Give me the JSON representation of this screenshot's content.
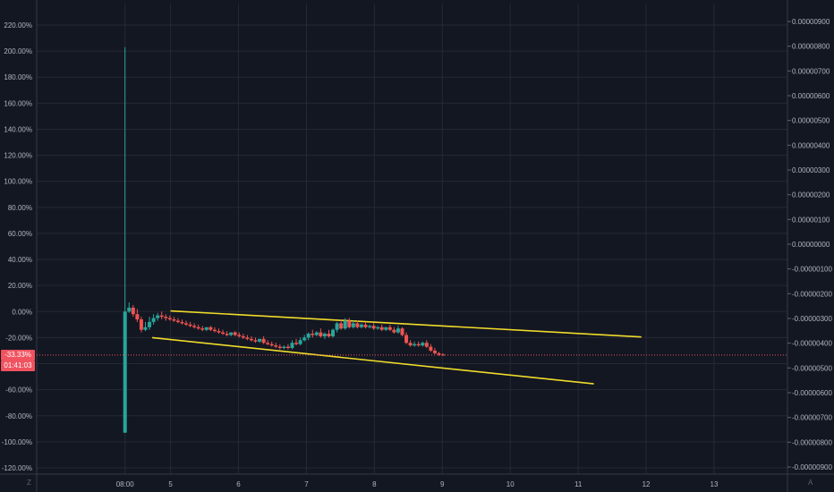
{
  "chart_data": {
    "type": "candlestick",
    "left_axis": {
      "ticks": [
        "220.00%",
        "200.00%",
        "180.00%",
        "160.00%",
        "140.00%",
        "120.00%",
        "100.00%",
        "80.00%",
        "60.00%",
        "40.00%",
        "20.00%",
        "0.00%",
        "-20.00%",
        "-40.00%",
        "-60.00%",
        "-80.00%",
        "-100.00%",
        "-120.00%"
      ],
      "range": [
        -122,
        226
      ]
    },
    "right_axis": {
      "ticks": [
        "0.00000900",
        "0.00000800",
        "0.00000700",
        "0.00000600",
        "0.00000500",
        "0.00000400",
        "0.00000300",
        "0.00000200",
        "0.00000100",
        "0.00000000",
        "-0.00000100",
        "-0.00000200",
        "-0.00000300",
        "-0.00000400",
        "-0.00000500",
        "-0.00000600",
        "-0.00000700",
        "-0.00000800",
        "-0.00000900"
      ]
    },
    "x_axis": {
      "ticks": [
        "08:00",
        "5",
        "6",
        "7",
        "8",
        "9",
        "10",
        "11",
        "12",
        "13"
      ],
      "tick_days": [
        4.0,
        4.67,
        5.67,
        6.67,
        7.67,
        8.67,
        9.67,
        10.67,
        11.67,
        12.67
      ],
      "range": [
        2.7,
        13.75
      ]
    },
    "current_value": {
      "label": "-33.33%",
      "value": -33.33,
      "countdown": "01:41:03"
    },
    "candles": [
      {
        "t": 4.0,
        "o": -93,
        "h": 203,
        "c": 0,
        "l": -93,
        "up": true
      },
      {
        "t": 4.06,
        "o": 0,
        "h": 7,
        "c": 3,
        "l": -1,
        "up": true
      },
      {
        "t": 4.12,
        "o": 3,
        "h": 5,
        "c": -2,
        "l": -4,
        "up": false
      },
      {
        "t": 4.18,
        "o": -2,
        "h": 2,
        "c": -6,
        "l": -8,
        "up": false
      },
      {
        "t": 4.24,
        "o": -6,
        "h": -4,
        "c": -14,
        "l": -16,
        "up": false
      },
      {
        "t": 4.3,
        "o": -14,
        "h": -8,
        "c": -12,
        "l": -15,
        "up": true
      },
      {
        "t": 4.36,
        "o": -12,
        "h": -4,
        "c": -8,
        "l": -14,
        "up": true
      },
      {
        "t": 4.42,
        "o": -8,
        "h": -2,
        "c": -5,
        "l": -10,
        "up": true
      },
      {
        "t": 4.48,
        "o": -5,
        "h": -1,
        "c": -3,
        "l": -7,
        "up": true
      },
      {
        "t": 4.54,
        "o": -3,
        "h": 0,
        "c": -4,
        "l": -6,
        "up": false
      },
      {
        "t": 4.6,
        "o": -4,
        "h": -2,
        "c": -5,
        "l": -7,
        "up": false
      },
      {
        "t": 4.66,
        "o": -5,
        "h": -3,
        "c": -6,
        "l": -7,
        "up": false
      },
      {
        "t": 4.72,
        "o": -6,
        "h": -4,
        "c": -7,
        "l": -8,
        "up": false
      },
      {
        "t": 4.78,
        "o": -7,
        "h": -5,
        "c": -8,
        "l": -9,
        "up": false
      },
      {
        "t": 4.84,
        "o": -8,
        "h": -6,
        "c": -9,
        "l": -10,
        "up": false
      },
      {
        "t": 4.9,
        "o": -9,
        "h": -7,
        "c": -10,
        "l": -11,
        "up": false
      },
      {
        "t": 4.96,
        "o": -10,
        "h": -8,
        "c": -11,
        "l": -12,
        "up": false
      },
      {
        "t": 5.02,
        "o": -11,
        "h": -9,
        "c": -12,
        "l": -13,
        "up": false
      },
      {
        "t": 5.08,
        "o": -12,
        "h": -10,
        "c": -13,
        "l": -14,
        "up": false
      },
      {
        "t": 5.14,
        "o": -13,
        "h": -11,
        "c": -14,
        "l": -15,
        "up": false
      },
      {
        "t": 5.2,
        "o": -14,
        "h": -12,
        "c": -12,
        "l": -15,
        "up": true
      },
      {
        "t": 5.26,
        "o": -12,
        "h": -11,
        "c": -14,
        "l": -15,
        "up": false
      },
      {
        "t": 5.32,
        "o": -14,
        "h": -12,
        "c": -15,
        "l": -16,
        "up": false
      },
      {
        "t": 5.38,
        "o": -15,
        "h": -13,
        "c": -16,
        "l": -17,
        "up": false
      },
      {
        "t": 5.44,
        "o": -16,
        "h": -14,
        "c": -17,
        "l": -18,
        "up": false
      },
      {
        "t": 5.5,
        "o": -17,
        "h": -15,
        "c": -18,
        "l": -19,
        "up": false
      },
      {
        "t": 5.56,
        "o": -18,
        "h": -16,
        "c": -16,
        "l": -19,
        "up": true
      },
      {
        "t": 5.62,
        "o": -16,
        "h": -15,
        "c": -18,
        "l": -19,
        "up": false
      },
      {
        "t": 5.68,
        "o": -18,
        "h": -16,
        "c": -19,
        "l": -20,
        "up": false
      },
      {
        "t": 5.74,
        "o": -19,
        "h": -17,
        "c": -20,
        "l": -21,
        "up": false
      },
      {
        "t": 5.8,
        "o": -20,
        "h": -18,
        "c": -21,
        "l": -22,
        "up": false
      },
      {
        "t": 5.86,
        "o": -21,
        "h": -19,
        "c": -22,
        "l": -23,
        "up": false
      },
      {
        "t": 5.92,
        "o": -22,
        "h": -20,
        "c": -23,
        "l": -24,
        "up": false
      },
      {
        "t": 5.98,
        "o": -23,
        "h": -21,
        "c": -21,
        "l": -24,
        "up": true
      },
      {
        "t": 6.04,
        "o": -21,
        "h": -19,
        "c": -24,
        "l": -25,
        "up": false
      },
      {
        "t": 6.1,
        "o": -24,
        "h": -22,
        "c": -25,
        "l": -26,
        "up": false
      },
      {
        "t": 6.16,
        "o": -25,
        "h": -23,
        "c": -26,
        "l": -27,
        "up": false
      },
      {
        "t": 6.22,
        "o": -26,
        "h": -24,
        "c": -27,
        "l": -28,
        "up": false
      },
      {
        "t": 6.28,
        "o": -27,
        "h": -25,
        "c": -28,
        "l": -29,
        "up": false
      },
      {
        "t": 6.34,
        "o": -28,
        "h": -26,
        "c": -27,
        "l": -29,
        "up": true
      },
      {
        "t": 6.4,
        "o": -27,
        "h": -25,
        "c": -28,
        "l": -29,
        "up": false
      },
      {
        "t": 6.46,
        "o": -28,
        "h": -22,
        "c": -24,
        "l": -29,
        "up": true
      },
      {
        "t": 6.52,
        "o": -24,
        "h": -21,
        "c": -25,
        "l": -26,
        "up": false
      },
      {
        "t": 6.58,
        "o": -25,
        "h": -20,
        "c": -22,
        "l": -26,
        "up": true
      },
      {
        "t": 6.64,
        "o": -22,
        "h": -18,
        "c": -20,
        "l": -23,
        "up": true
      },
      {
        "t": 6.7,
        "o": -20,
        "h": -16,
        "c": -17,
        "l": -22,
        "up": true
      },
      {
        "t": 6.76,
        "o": -17,
        "h": -14,
        "c": -18,
        "l": -20,
        "up": false
      },
      {
        "t": 6.82,
        "o": -18,
        "h": -15,
        "c": -16,
        "l": -19,
        "up": true
      },
      {
        "t": 6.88,
        "o": -16,
        "h": -13,
        "c": -19,
        "l": -20,
        "up": false
      },
      {
        "t": 6.94,
        "o": -19,
        "h": -16,
        "c": -17,
        "l": -21,
        "up": true
      },
      {
        "t": 7.0,
        "o": -17,
        "h": -14,
        "c": -19,
        "l": -20,
        "up": false
      },
      {
        "t": 7.06,
        "o": -19,
        "h": -13,
        "c": -14,
        "l": -20,
        "up": true
      },
      {
        "t": 7.12,
        "o": -14,
        "h": -8,
        "c": -9,
        "l": -16,
        "up": true
      },
      {
        "t": 7.18,
        "o": -9,
        "h": -6,
        "c": -13,
        "l": -14,
        "up": false
      },
      {
        "t": 7.24,
        "o": -13,
        "h": -5,
        "c": -7,
        "l": -14,
        "up": true
      },
      {
        "t": 7.3,
        "o": -7,
        "h": -5,
        "c": -12,
        "l": -13,
        "up": false
      },
      {
        "t": 7.36,
        "o": -12,
        "h": -7,
        "c": -9,
        "l": -13,
        "up": true
      },
      {
        "t": 7.42,
        "o": -9,
        "h": -7,
        "c": -12,
        "l": -13,
        "up": false
      },
      {
        "t": 7.48,
        "o": -12,
        "h": -9,
        "c": -10,
        "l": -13,
        "up": true
      },
      {
        "t": 7.54,
        "o": -10,
        "h": -8,
        "c": -12,
        "l": -13,
        "up": false
      },
      {
        "t": 7.6,
        "o": -12,
        "h": -10,
        "c": -11,
        "l": -13,
        "up": true
      },
      {
        "t": 7.66,
        "o": -11,
        "h": -9,
        "c": -13,
        "l": -14,
        "up": false
      },
      {
        "t": 7.72,
        "o": -13,
        "h": -11,
        "c": -12,
        "l": -14,
        "up": true
      },
      {
        "t": 7.78,
        "o": -12,
        "h": -10,
        "c": -14,
        "l": -15,
        "up": false
      },
      {
        "t": 7.84,
        "o": -14,
        "h": -12,
        "c": -12,
        "l": -15,
        "up": true
      },
      {
        "t": 7.9,
        "o": -12,
        "h": -10,
        "c": -14,
        "l": -15,
        "up": false
      },
      {
        "t": 7.96,
        "o": -14,
        "h": -12,
        "c": -16,
        "l": -17,
        "up": false
      },
      {
        "t": 8.02,
        "o": -16,
        "h": -11,
        "c": -13,
        "l": -17,
        "up": true
      },
      {
        "t": 8.08,
        "o": -13,
        "h": -12,
        "c": -18,
        "l": -19,
        "up": false
      },
      {
        "t": 8.14,
        "o": -18,
        "h": -16,
        "c": -24,
        "l": -25,
        "up": false
      },
      {
        "t": 8.2,
        "o": -24,
        "h": -22,
        "c": -26,
        "l": -27,
        "up": false
      },
      {
        "t": 8.26,
        "o": -26,
        "h": -23,
        "c": -25,
        "l": -27,
        "up": true
      },
      {
        "t": 8.32,
        "o": -25,
        "h": -23,
        "c": -26,
        "l": -27,
        "up": false
      },
      {
        "t": 8.38,
        "o": -26,
        "h": -23,
        "c": -24,
        "l": -27,
        "up": true
      },
      {
        "t": 8.44,
        "o": -24,
        "h": -22,
        "c": -27,
        "l": -28,
        "up": false
      },
      {
        "t": 8.5,
        "o": -27,
        "h": -25,
        "c": -30,
        "l": -31,
        "up": false
      },
      {
        "t": 8.56,
        "o": -30,
        "h": -28,
        "c": -32,
        "l": -33,
        "up": false
      },
      {
        "t": 8.62,
        "o": -32,
        "h": -31,
        "c": -33,
        "l": -34,
        "up": false
      },
      {
        "t": 8.68,
        "o": -33,
        "h": -32,
        "c": -33,
        "l": -34,
        "up": false
      }
    ],
    "trendlines": [
      {
        "t1": 4.67,
        "v1": 0.5,
        "t2": 11.6,
        "v2": -19.5
      },
      {
        "t1": 4.4,
        "v1": -20,
        "t2": 10.9,
        "v2": -55.5
      }
    ],
    "grid": true,
    "colors": {
      "background": "#131722",
      "grid": "#242935",
      "up": "#26a69a",
      "down": "#ef5350",
      "trendline": "#f0dc2a",
      "price_line": "#f0525f",
      "axis_text": "#b2b5be"
    }
  },
  "corners": {
    "left": "Z",
    "right": "A"
  }
}
